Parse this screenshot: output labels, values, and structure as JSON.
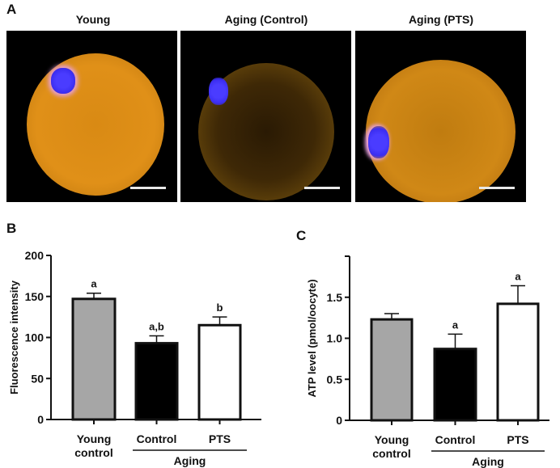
{
  "panel_a": {
    "letter": "A",
    "titles": [
      "Young",
      "Aging (Control)",
      "Aging (PTS)"
    ],
    "colors": {
      "mitochondria": "#f0a020",
      "chromosomes": "#3b2df0"
    }
  },
  "chart_data": [
    {
      "letter": "B",
      "type": "bar",
      "ylabel": "Fluorescence intensity",
      "ylim": [
        0,
        200
      ],
      "yticks": [
        "0",
        "50",
        "100",
        "150",
        "200"
      ],
      "categories": [
        "Young\ncontrol",
        "Control",
        "PTS"
      ],
      "category_lines": [
        [
          "Young",
          "control"
        ],
        [
          "Control"
        ],
        [
          "PTS"
        ]
      ],
      "group_label": "Aging",
      "values": [
        147,
        93,
        115
      ],
      "errors": [
        7,
        9,
        10
      ],
      "annotations": [
        "a",
        "a,b",
        "b"
      ],
      "bar_colors": [
        "#a6a6a6",
        "#000000",
        "#ffffff"
      ]
    },
    {
      "letter": "C",
      "type": "bar",
      "ylabel": "ATP level (pmol/oocyte)",
      "ylim": [
        0,
        2
      ],
      "yticks": [
        "0",
        "0.5",
        "1.0",
        "1.5"
      ],
      "categories": [
        "Young\ncontrol",
        "Control",
        "PTS"
      ],
      "category_lines": [
        [
          "Young",
          "control"
        ],
        [
          "Control"
        ],
        [
          "PTS"
        ]
      ],
      "group_label": "Aging",
      "values": [
        1.23,
        0.87,
        1.42
      ],
      "errors": [
        0.07,
        0.18,
        0.22
      ],
      "annotations": [
        "",
        "a",
        "a"
      ],
      "bar_colors": [
        "#a6a6a6",
        "#000000",
        "#ffffff"
      ]
    }
  ]
}
